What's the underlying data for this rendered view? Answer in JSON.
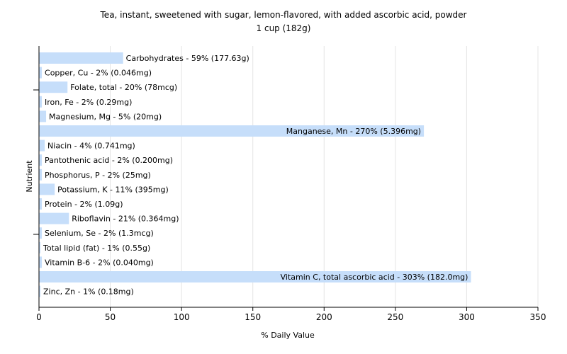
{
  "chart_data": {
    "type": "bar",
    "orientation": "horizontal",
    "title": "Tea, instant, sweetened with sugar, lemon-flavored, with added ascorbic acid, powder",
    "subtitle": "1 cup (182g)",
    "xlabel": "% Daily Value",
    "ylabel": "Nutrient",
    "xlim": [
      0,
      350
    ],
    "x_ticks": [
      0,
      50,
      100,
      150,
      200,
      250,
      300,
      350
    ],
    "grid": "vertical",
    "bar_color": "#c6defa",
    "categories": [
      "Carbohydrates",
      "Copper, Cu",
      "Folate, total",
      "Iron, Fe",
      "Magnesium, Mg",
      "Manganese, Mn",
      "Niacin",
      "Pantothenic acid",
      "Phosphorus, P",
      "Potassium, K",
      "Protein",
      "Riboflavin",
      "Selenium, Se",
      "Total lipid (fat)",
      "Vitamin B-6",
      "Vitamin C, total ascorbic acid",
      "Zinc, Zn"
    ],
    "values": [
      59,
      2,
      20,
      2,
      5,
      270,
      4,
      2,
      2,
      11,
      2,
      21,
      2,
      1,
      2,
      303,
      1
    ],
    "labels": [
      "Carbohydrates - 59% (177.63g)",
      "Copper, Cu - 2% (0.046mg)",
      "Folate, total - 20% (78mcg)",
      "Iron, Fe - 2% (0.29mg)",
      "Magnesium, Mg - 5% (20mg)",
      "Manganese, Mn - 270% (5.396mg)",
      "Niacin - 4% (0.741mg)",
      "Pantothenic acid - 2% (0.200mg)",
      "Phosphorus, P - 2% (25mg)",
      "Potassium, K - 11% (395mg)",
      "Protein - 2% (1.09g)",
      "Riboflavin - 21% (0.364mg)",
      "Selenium, Se - 2% (1.3mcg)",
      "Total lipid (fat) - 1% (0.55g)",
      "Vitamin B-6 - 2% (0.040mg)",
      "Vitamin C, total ascorbic acid - 303% (182.0mg)",
      "Zinc, Zn - 1% (0.18mg)"
    ]
  }
}
